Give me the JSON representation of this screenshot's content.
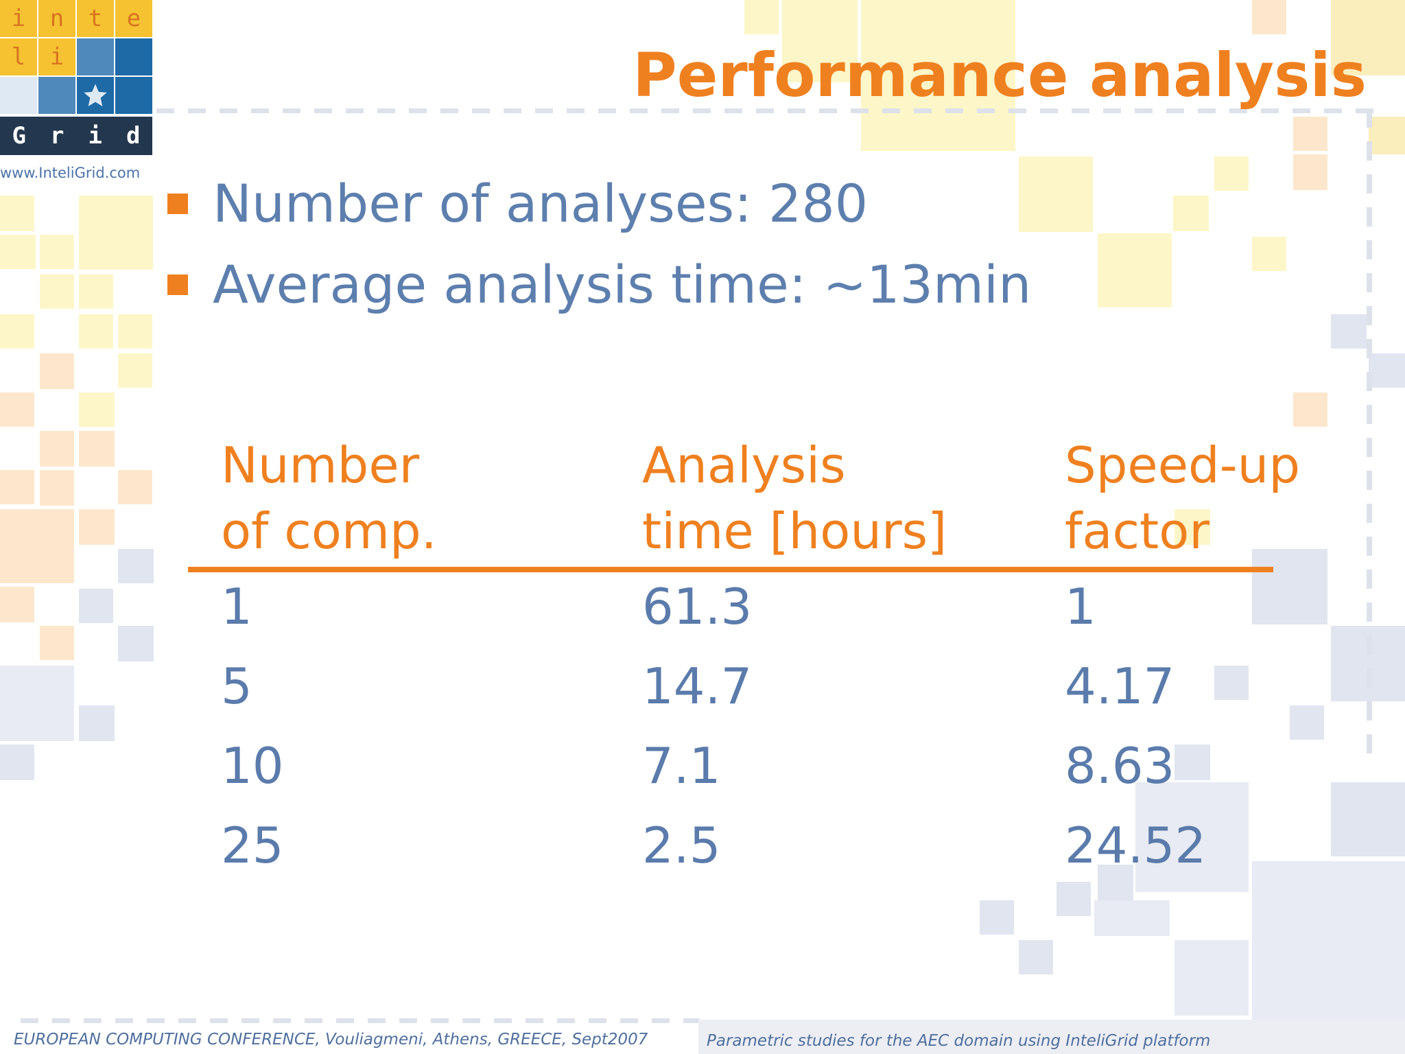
{
  "logo": {
    "tiles": [
      "i",
      "n",
      "t",
      "e",
      "l",
      "i"
    ],
    "grid_letters": [
      "G",
      "r",
      "i",
      "d"
    ],
    "star_icon": "star-icon",
    "url": "www.InteliGrid.com"
  },
  "title": "Performance analysis",
  "bullets": [
    "Number of analyses: 280",
    "Average analysis time: ~13min"
  ],
  "table": {
    "headers": [
      [
        "Number",
        "of comp."
      ],
      [
        "Analysis",
        "time [hours]"
      ],
      [
        "Speed-up",
        "factor"
      ]
    ],
    "rows": [
      [
        "1",
        "61.3",
        "1"
      ],
      [
        "5",
        "14.7",
        "4.17"
      ],
      [
        "10",
        "7.1",
        "8.63"
      ],
      [
        "25",
        "2.5",
        "24.52"
      ]
    ]
  },
  "footer": {
    "left": "EUROPEAN COMPUTING CONFERENCE, Vouliagmeni, Athens, GREECE, Sept2007",
    "right": "Parametric studies for the AEC domain using InteliGrid platform"
  },
  "colors": {
    "accent": "#ef801f",
    "text_blue": "#5a7bab"
  }
}
